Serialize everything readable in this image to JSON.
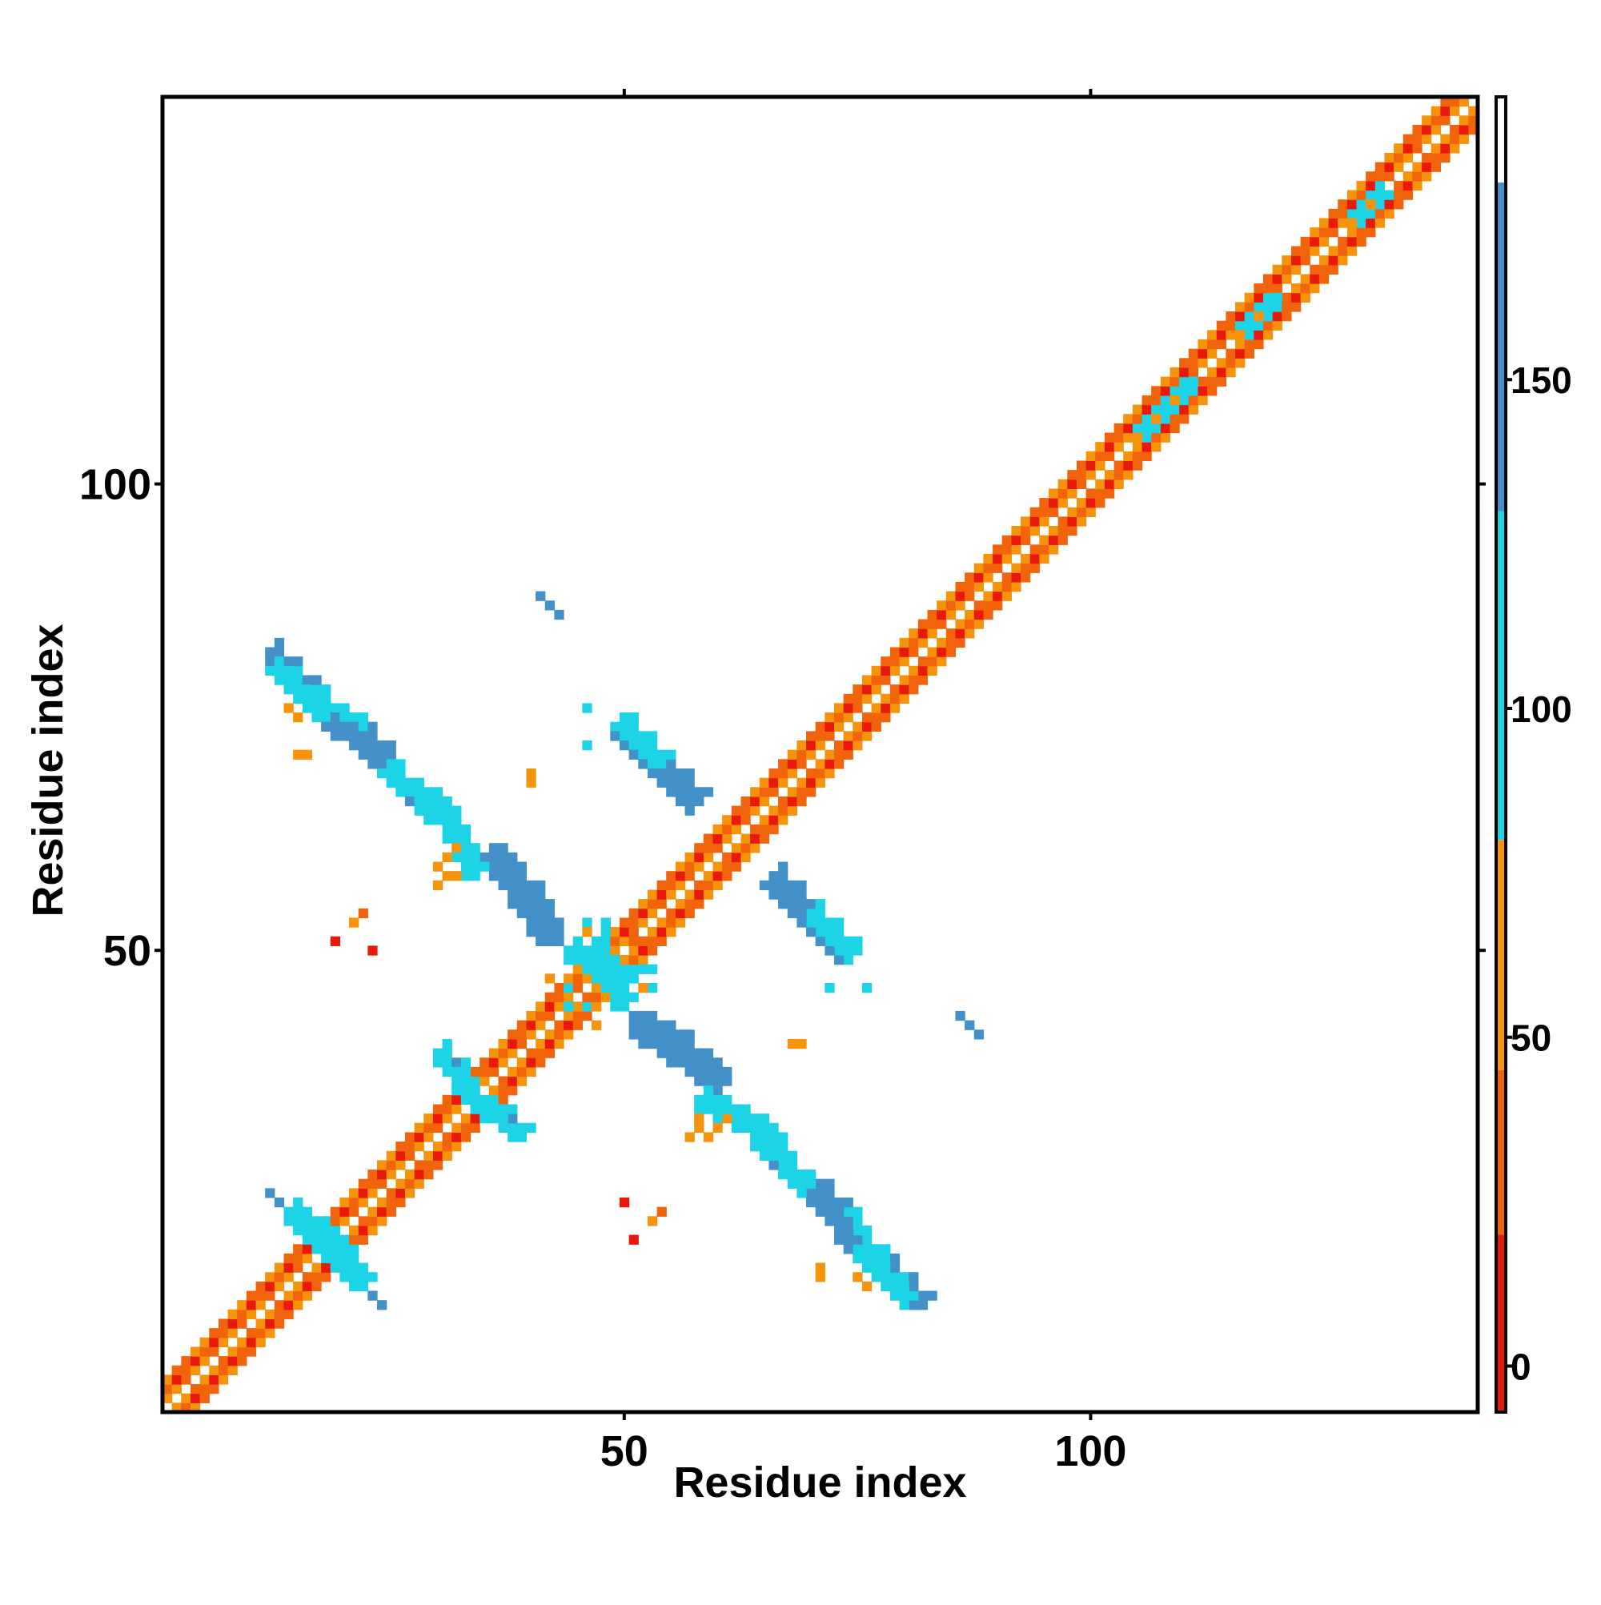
{
  "chart_data": {
    "type": "heatmap",
    "title": "",
    "xlabel": "Residue index",
    "ylabel": "Residue index",
    "xlim": [
      0.5,
      141.5
    ],
    "ylim": [
      0.5,
      141.5
    ],
    "x_ticks": [
      50,
      100
    ],
    "x_tick_labels": [
      "50",
      "100"
    ],
    "y_ticks": [
      50,
      100
    ],
    "y_tick_labels": [
      "50",
      "100"
    ],
    "grid": false,
    "legend": "colorbar-right",
    "colorbar": {
      "range": [
        -7,
        193
      ],
      "ticks": [
        0,
        50,
        100,
        150
      ],
      "tick_labels": [
        "0",
        "50",
        "100",
        "150"
      ],
      "bands": [
        {
          "from": -7,
          "to": 20,
          "color": "#e8190a"
        },
        {
          "from": 20,
          "to": 45,
          "color": "#f2640c"
        },
        {
          "from": 45,
          "to": 80,
          "color": "#f5930a"
        },
        {
          "from": 80,
          "to": 130,
          "color": "#1dd3e6"
        },
        {
          "from": 130,
          "to": 180,
          "color": "#4490c8"
        },
        {
          "from": 180,
          "to": 193,
          "color": "#ffffff"
        }
      ]
    },
    "diagonal": {
      "from": 1,
      "to": 141
    },
    "segments": [
      {
        "from": [
          12,
          82
        ],
        "to": [
          17,
          77
        ],
        "value": 160
      },
      {
        "from": [
          17,
          77
        ],
        "to": [
          22,
          73
        ],
        "value": 125
      },
      {
        "from": [
          22,
          73
        ],
        "to": [
          28,
          66
        ],
        "value": 160
      },
      {
        "from": [
          28,
          66
        ],
        "to": [
          31,
          64
        ],
        "value": 105
      },
      {
        "from": [
          31,
          64
        ],
        "to": [
          33,
          61
        ],
        "value": 165
      },
      {
        "from": [
          36,
          60
        ],
        "to": [
          40,
          56
        ],
        "value": 160
      },
      {
        "from": [
          40,
          56
        ],
        "to": [
          42,
          52
        ],
        "value": 160
      },
      {
        "from": [
          44,
          50
        ],
        "to": [
          50,
          47
        ],
        "value": 110
      },
      {
        "from": [
          49,
          74
        ],
        "to": [
          53,
          70
        ],
        "value": 165
      },
      {
        "from": [
          53,
          70
        ],
        "to": [
          57,
          66
        ],
        "value": 160
      },
      {
        "from": [
          66,
          58
        ],
        "to": [
          70,
          54
        ],
        "value": 160
      },
      {
        "from": [
          70,
          54
        ],
        "to": [
          74,
          50
        ],
        "value": 125
      },
      {
        "from": [
          51,
          42
        ],
        "to": [
          60,
          36
        ],
        "value": 160
      },
      {
        "from": [
          58,
          34
        ],
        "to": [
          64,
          31
        ],
        "value": 110
      },
      {
        "from": [
          64,
          31
        ],
        "to": [
          70,
          24
        ],
        "value": 125
      },
      {
        "from": [
          70,
          24
        ],
        "to": [
          75,
          18
        ],
        "value": 160
      },
      {
        "from": [
          75,
          18
        ],
        "to": [
          80,
          13
        ],
        "value": 125
      },
      {
        "from": [
          30,
          39
        ],
        "to": [
          35,
          33
        ],
        "value": 120
      },
      {
        "from": [
          14,
          22
        ],
        "to": [
          21,
          16
        ],
        "value": 115
      },
      {
        "from": [
          105,
          106
        ],
        "to": [
          110,
          111
        ],
        "value": 100
      },
      {
        "from": [
          116,
          117
        ],
        "to": [
          119,
          120
        ],
        "value": 100
      },
      {
        "from": [
          128,
          129
        ],
        "to": [
          130,
          131
        ],
        "value": 100
      }
    ],
    "points": [
      [
        14,
        76,
        55
      ],
      [
        15,
        75,
        55
      ],
      [
        31,
        58,
        60
      ],
      [
        30,
        57,
        65
      ],
      [
        32,
        58,
        55
      ],
      [
        21,
        53,
        45
      ],
      [
        23,
        50,
        10
      ],
      [
        60,
        31,
        55
      ],
      [
        59,
        30,
        60
      ],
      [
        61,
        32,
        55
      ],
      [
        71,
        15,
        45
      ],
      [
        71,
        16,
        60
      ],
      [
        54,
        22,
        40
      ],
      [
        51,
        19,
        10
      ],
      [
        68,
        40,
        45
      ],
      [
        40,
        69,
        45
      ],
      [
        46,
        76,
        115
      ],
      [
        41,
        88,
        165
      ],
      [
        42,
        87,
        160
      ],
      [
        72,
        46,
        110
      ],
      [
        86,
        43,
        160
      ],
      [
        87,
        42,
        160
      ],
      [
        12,
        24,
        165
      ],
      [
        23,
        13,
        160
      ],
      [
        38,
        32,
        165
      ],
      [
        43,
        51,
        160
      ],
      [
        49,
        52,
        75
      ],
      [
        48,
        45,
        60
      ],
      [
        50,
        48,
        110
      ],
      [
        46,
        53,
        110
      ],
      [
        44,
        46,
        110
      ],
      [
        52,
        46,
        60
      ],
      [
        45,
        48,
        65
      ],
      [
        51,
        51,
        20
      ],
      [
        47,
        47,
        115
      ],
      [
        53,
        48,
        110
      ],
      [
        42,
        47,
        45
      ],
      [
        48,
        52,
        120
      ],
      [
        44,
        44,
        110
      ]
    ]
  }
}
